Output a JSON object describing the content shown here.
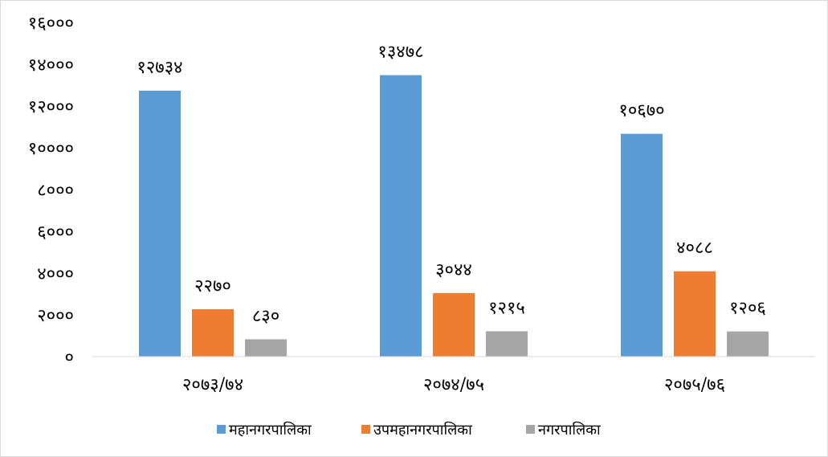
{
  "chart_data": {
    "type": "bar",
    "categories": [
      "२०७३/७४",
      "२०७४/७५",
      "२०७५/७६"
    ],
    "series": [
      {
        "name": "महानगरपालिका",
        "color": "#5b9bd5",
        "values": [
          12734,
          13478,
          10670
        ],
        "labels": [
          "१२७३४",
          "१३४७८",
          "१०६७०"
        ]
      },
      {
        "name": "उपमहानगरपालिका",
        "color": "#ed7d31",
        "values": [
          2270,
          3044,
          4088
        ],
        "labels": [
          "२२७०",
          "३०४४",
          "४०८८"
        ]
      },
      {
        "name": "नगरपालिका",
        "color": "#a5a5a5",
        "values": [
          830,
          1215,
          1206
        ],
        "labels": [
          "८३०",
          "१२१५",
          "१२०६"
        ]
      }
    ],
    "ylim": [
      0,
      16000
    ],
    "yticks": [
      0,
      2000,
      4000,
      6000,
      8000,
      10000,
      12000,
      14000,
      16000
    ],
    "ytick_labels": [
      "०",
      "२०००",
      "४०००",
      "६०००",
      "८०००",
      "१००००",
      "१२०००",
      "१४०००",
      "१६०००"
    ],
    "grid": false,
    "legend_position": "bottom"
  }
}
